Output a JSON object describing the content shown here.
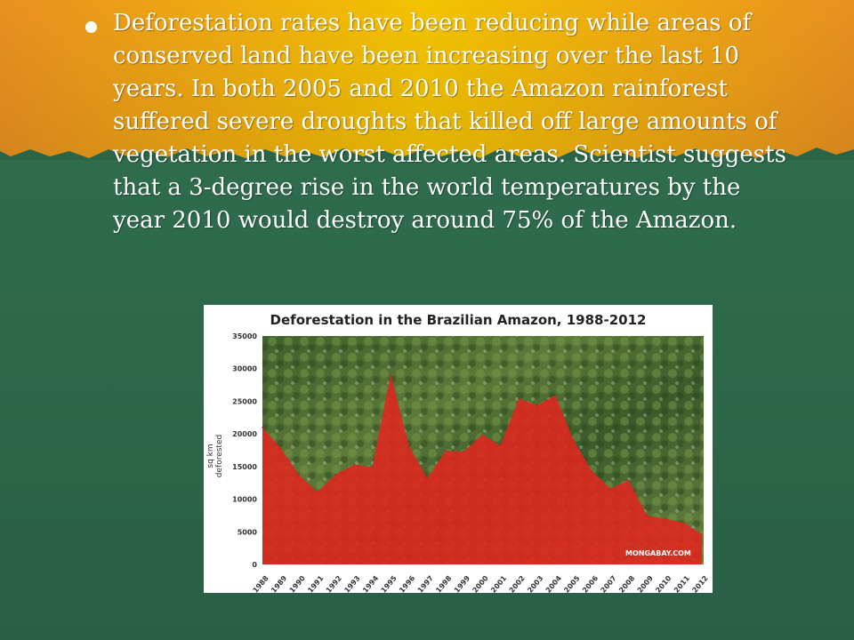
{
  "bullet": {
    "text": "Deforestation rates have been reducing while areas of conserved land have been increasing over the last 10 years.  In both 2005 and 2010 the Amazon rainforest suffered severe droughts that killed off large amounts of vegetation in the worst affected areas. Scientist suggests that a 3-degree rise in the world temperatures by the year 2010 would destroy around 75% of the Amazon."
  },
  "colors": {
    "header_yellow": "#f3c300",
    "header_orange": "#e89020",
    "body_green": "#2e6a4c",
    "area_fill": "#e0261f"
  },
  "chart_data": {
    "type": "area",
    "title": "Deforestation in the Brazilian Amazon, 1988-2012",
    "xlabel": "",
    "ylabel": "sq km deforested",
    "ylim": [
      0,
      35000
    ],
    "yticks": [
      "0",
      "5000",
      "10000",
      "15000",
      "20000",
      "25000",
      "30000",
      "35000"
    ],
    "categories": [
      "1988",
      "1989",
      "1990",
      "1991",
      "1992",
      "1993",
      "1994",
      "1995",
      "1996",
      "1997",
      "1998",
      "1999",
      "2000",
      "2001",
      "2002",
      "2003",
      "2004",
      "2005",
      "2006",
      "2007",
      "2008",
      "2009",
      "2010",
      "2011",
      "2012"
    ],
    "values": [
      21000,
      17800,
      13700,
      11100,
      13800,
      15300,
      14900,
      29100,
      18200,
      13200,
      17400,
      17300,
      19900,
      18200,
      25400,
      24400,
      25900,
      19000,
      14300,
      11600,
      12900,
      7500,
      7000,
      6400,
      4600
    ],
    "background_image": "rainforest canopy photo",
    "grid": false,
    "legend": "none",
    "watermark": "MONGABAY.COM"
  }
}
